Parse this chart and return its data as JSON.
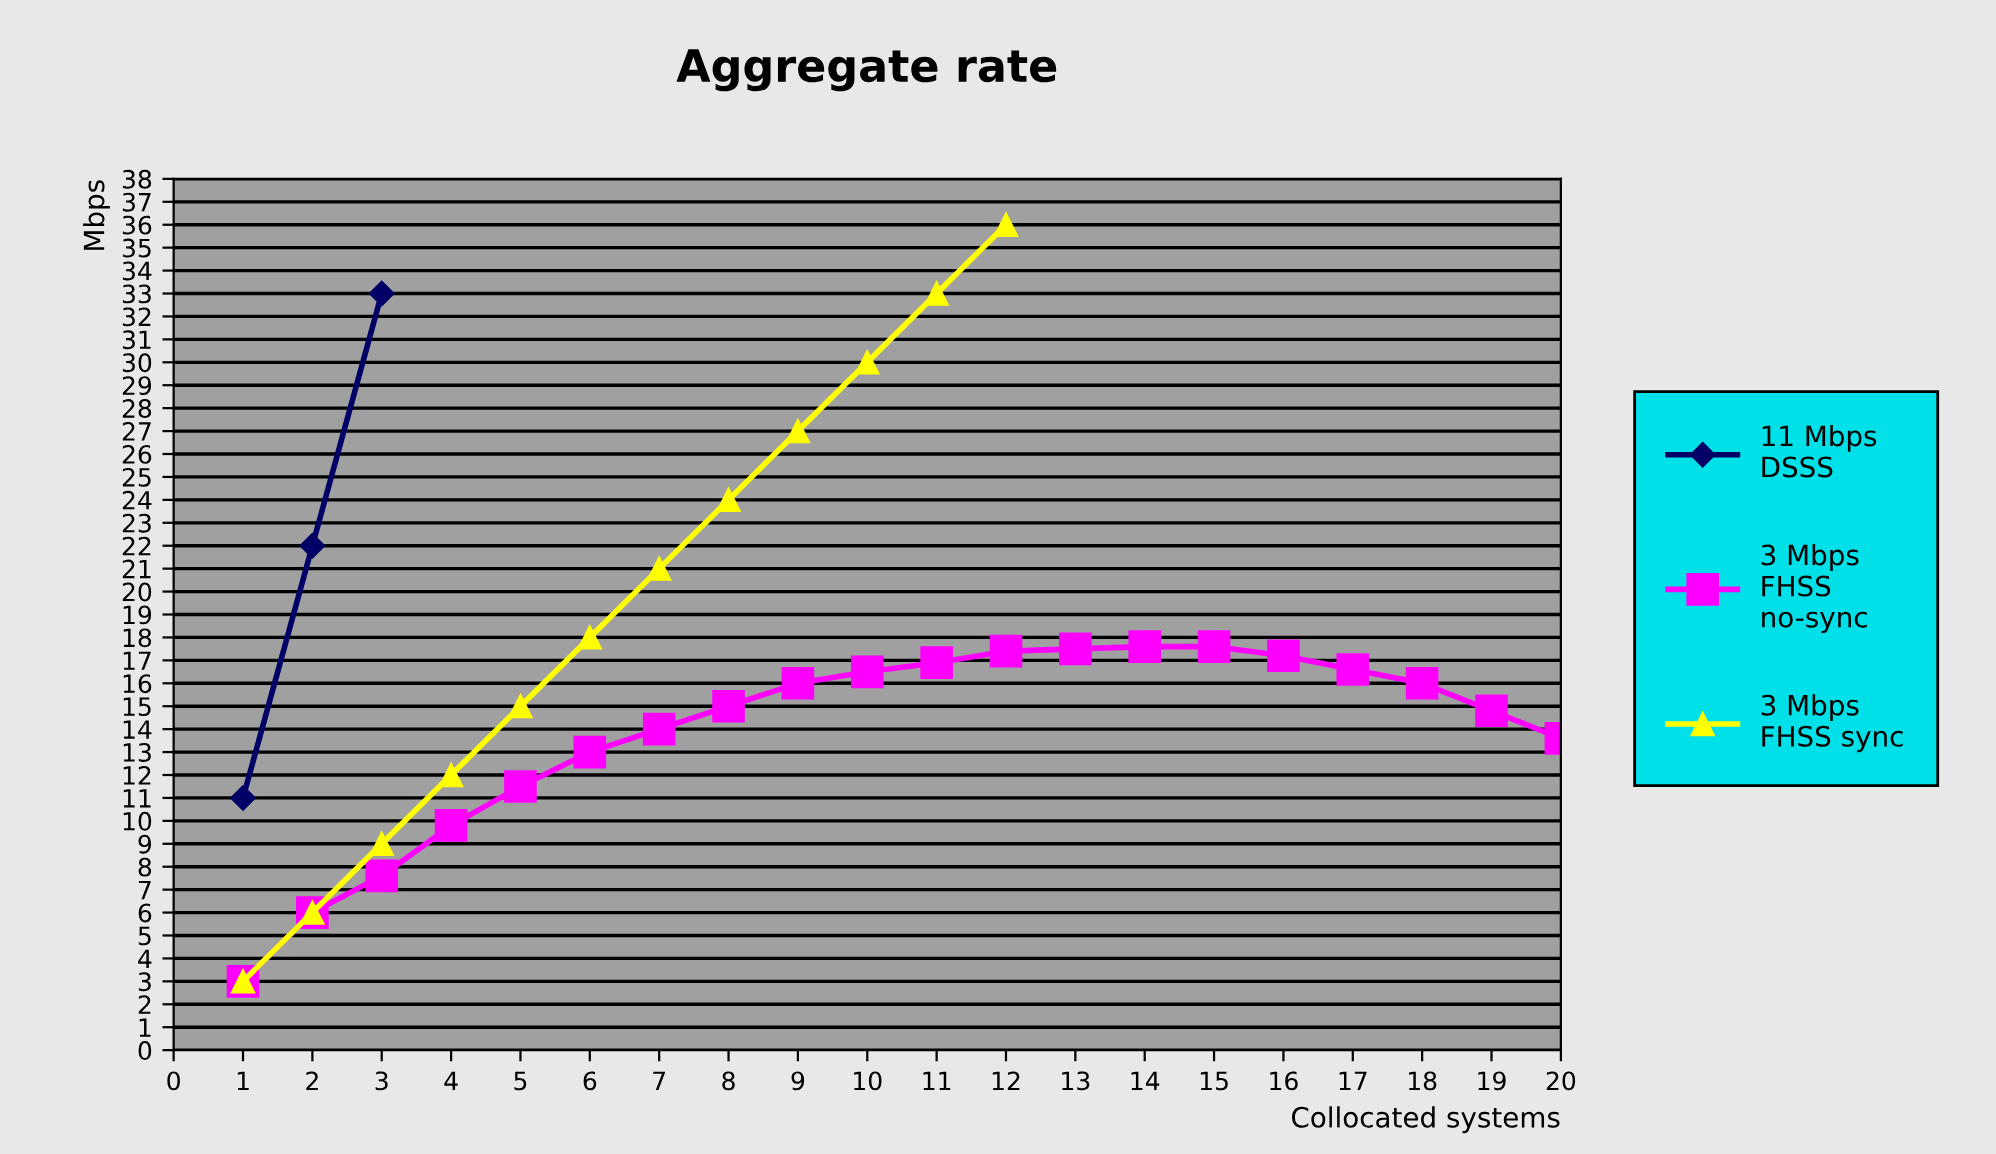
{
  "chart_data": {
    "type": "line",
    "title": "Aggregate rate",
    "xlabel": "Collocated systems",
    "ylabel": "Mbps",
    "x": [
      1,
      2,
      3,
      4,
      5,
      6,
      7,
      8,
      9,
      10,
      11,
      12,
      13,
      14,
      15,
      16,
      17,
      18,
      19,
      20
    ],
    "xlim": [
      0,
      20
    ],
    "xticks": [
      0,
      1,
      2,
      3,
      4,
      5,
      6,
      7,
      8,
      9,
      10,
      11,
      12,
      13,
      14,
      15,
      16,
      17,
      18,
      19,
      20
    ],
    "ylim": [
      0,
      38
    ],
    "yticks": [
      0,
      1,
      2,
      3,
      4,
      5,
      6,
      7,
      8,
      9,
      10,
      11,
      12,
      13,
      14,
      15,
      16,
      17,
      18,
      19,
      20,
      21,
      22,
      23,
      24,
      25,
      26,
      27,
      28,
      29,
      30,
      31,
      32,
      33,
      34,
      35,
      36,
      37,
      38
    ],
    "grid": "y",
    "legend": "right",
    "series": [
      {
        "name": "11 Mbps\nDSSS",
        "color": "#000066",
        "marker": "diamond",
        "x": [
          1,
          2,
          3
        ],
        "values": [
          11,
          22,
          33
        ]
      },
      {
        "name": "3 Mbps\nFHSS\nno-sync",
        "color": "#ff00ff",
        "marker": "square",
        "values": [
          3,
          6,
          7.6,
          9.8,
          11.5,
          13,
          14,
          15,
          16,
          16.5,
          16.9,
          17.4,
          17.5,
          17.6,
          17.6,
          17.2,
          16.6,
          16,
          14.8,
          13.6
        ]
      },
      {
        "name": "3 Mbps\nFHSS sync",
        "color": "#ffff00",
        "marker": "triangle",
        "x": [
          1,
          2,
          3,
          4,
          5,
          6,
          7,
          8,
          9,
          10,
          11,
          12
        ],
        "values": [
          3,
          6,
          9,
          12,
          15,
          18,
          21,
          24,
          27,
          30,
          33,
          36
        ]
      }
    ]
  }
}
